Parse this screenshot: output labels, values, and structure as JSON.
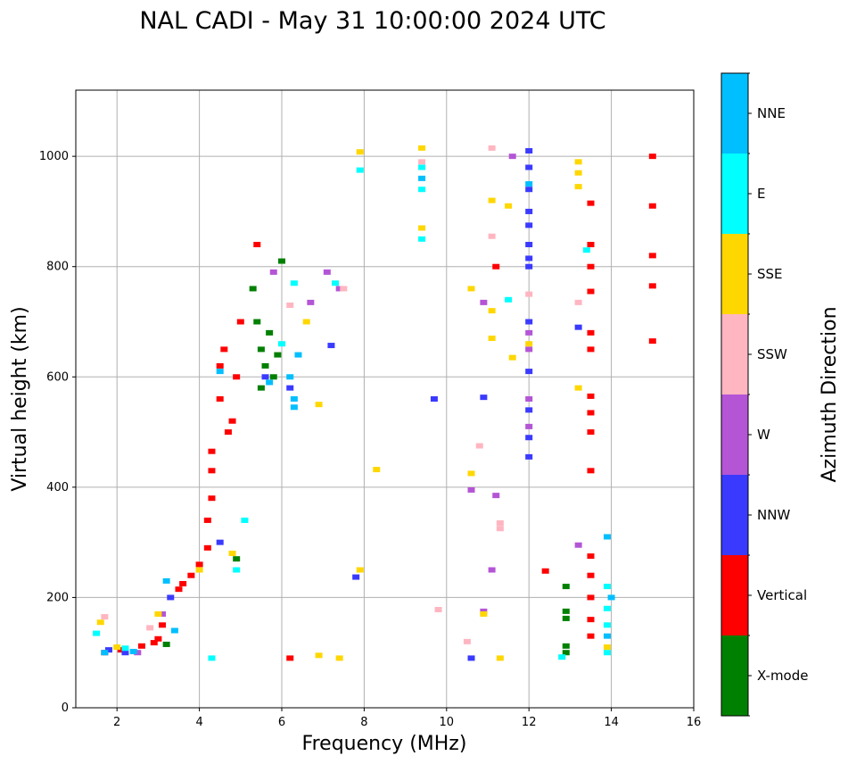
{
  "chart_data": {
    "type": "scatter",
    "title": "NAL CADI - May 31 10:00:00 2024 UTC",
    "xlabel": "Frequency (MHz)",
    "ylabel": "Virtual height (km)",
    "xlim": [
      1,
      16
    ],
    "ylim": [
      0,
      1120
    ],
    "xticks": [
      2,
      4,
      6,
      8,
      10,
      12,
      14,
      16
    ],
    "yticks": [
      0,
      200,
      400,
      600,
      800,
      1000
    ],
    "grid": true,
    "colorbar": {
      "title": "Azimuth Direction",
      "categories": [
        {
          "label": "X-mode",
          "color": "#008000"
        },
        {
          "label": "Vertical",
          "color": "#ff0000"
        },
        {
          "label": "NNW",
          "color": "#3a3aff"
        },
        {
          "label": "W",
          "color": "#b455d6"
        },
        {
          "label": "SSW",
          "color": "#ffb6c1"
        },
        {
          "label": "SSE",
          "color": "#ffd700"
        },
        {
          "label": "E",
          "color": "#00ffff"
        },
        {
          "label": "NNE",
          "color": "#00bfff"
        }
      ]
    },
    "series": [
      {
        "name": "X-mode",
        "points": [
          [
            3.2,
            115
          ],
          [
            4.9,
            270
          ],
          [
            5.4,
            700
          ],
          [
            5.5,
            650
          ],
          [
            5.6,
            620
          ],
          [
            5.7,
            680
          ],
          [
            5.8,
            600
          ],
          [
            5.9,
            640
          ],
          [
            6.0,
            810
          ],
          [
            5.5,
            580
          ],
          [
            5.3,
            760
          ],
          [
            12.9,
            220
          ],
          [
            12.9,
            175
          ],
          [
            12.9,
            162
          ],
          [
            12.9,
            112
          ],
          [
            12.9,
            100
          ]
        ]
      },
      {
        "name": "Vertical",
        "points": [
          [
            1.7,
            100
          ],
          [
            2.1,
            105
          ],
          [
            2.6,
            112
          ],
          [
            2.9,
            118
          ],
          [
            3.0,
            125
          ],
          [
            3.1,
            150
          ],
          [
            3.5,
            215
          ],
          [
            3.6,
            225
          ],
          [
            3.8,
            240
          ],
          [
            4.0,
            260
          ],
          [
            4.2,
            290
          ],
          [
            4.2,
            340
          ],
          [
            4.3,
            380
          ],
          [
            4.3,
            430
          ],
          [
            4.3,
            465
          ],
          [
            4.5,
            560
          ],
          [
            4.5,
            620
          ],
          [
            4.6,
            650
          ],
          [
            4.7,
            500
          ],
          [
            4.8,
            520
          ],
          [
            4.9,
            600
          ],
          [
            5.0,
            700
          ],
          [
            5.4,
            840
          ],
          [
            6.2,
            90
          ],
          [
            11.2,
            800
          ],
          [
            12.4,
            248
          ],
          [
            13.5,
            915
          ],
          [
            13.5,
            840
          ],
          [
            13.5,
            800
          ],
          [
            13.5,
            755
          ],
          [
            13.5,
            680
          ],
          [
            13.5,
            650
          ],
          [
            13.5,
            565
          ],
          [
            13.5,
            535
          ],
          [
            13.5,
            500
          ],
          [
            13.5,
            430
          ],
          [
            13.5,
            275
          ],
          [
            13.5,
            240
          ],
          [
            13.5,
            200
          ],
          [
            13.5,
            160
          ],
          [
            13.5,
            130
          ],
          [
            15.0,
            1000
          ],
          [
            15.0,
            910
          ],
          [
            15.0,
            820
          ],
          [
            15.0,
            765
          ],
          [
            15.0,
            665
          ]
        ]
      },
      {
        "name": "NNW",
        "points": [
          [
            1.8,
            105
          ],
          [
            2.2,
            100
          ],
          [
            3.3,
            200
          ],
          [
            4.5,
            300
          ],
          [
            5.6,
            600
          ],
          [
            6.2,
            580
          ],
          [
            7.2,
            657
          ],
          [
            7.8,
            237
          ],
          [
            9.7,
            560
          ],
          [
            10.6,
            90
          ],
          [
            10.9,
            563
          ],
          [
            12.0,
            1010
          ],
          [
            12.0,
            980
          ],
          [
            12.0,
            940
          ],
          [
            12.0,
            900
          ],
          [
            12.0,
            875
          ],
          [
            12.0,
            840
          ],
          [
            12.0,
            815
          ],
          [
            12.0,
            800
          ],
          [
            12.0,
            700
          ],
          [
            12.0,
            610
          ],
          [
            12.0,
            540
          ],
          [
            12.0,
            490
          ],
          [
            12.0,
            455
          ],
          [
            13.2,
            690
          ]
        ]
      },
      {
        "name": "W",
        "points": [
          [
            2.5,
            100
          ],
          [
            3.1,
            170
          ],
          [
            5.8,
            790
          ],
          [
            6.7,
            735
          ],
          [
            7.1,
            790
          ],
          [
            7.4,
            760
          ],
          [
            10.6,
            395
          ],
          [
            10.9,
            175
          ],
          [
            10.9,
            735
          ],
          [
            11.2,
            385
          ],
          [
            11.6,
            1000
          ],
          [
            11.1,
            250
          ],
          [
            12.0,
            680
          ],
          [
            12.0,
            650
          ],
          [
            12.0,
            560
          ],
          [
            12.0,
            510
          ],
          [
            13.2,
            295
          ]
        ]
      },
      {
        "name": "SSW",
        "points": [
          [
            1.7,
            165
          ],
          [
            2.8,
            145
          ],
          [
            6.2,
            730
          ],
          [
            7.5,
            760
          ],
          [
            9.4,
            990
          ],
          [
            9.8,
            178
          ],
          [
            10.5,
            120
          ],
          [
            10.8,
            475
          ],
          [
            11.1,
            1015
          ],
          [
            11.1,
            855
          ],
          [
            11.3,
            335
          ],
          [
            11.3,
            325
          ],
          [
            12.0,
            750
          ],
          [
            13.2,
            735
          ]
        ]
      },
      {
        "name": "SSE",
        "points": [
          [
            1.6,
            155
          ],
          [
            2.0,
            110
          ],
          [
            3.0,
            170
          ],
          [
            4.0,
            250
          ],
          [
            4.8,
            280
          ],
          [
            6.6,
            700
          ],
          [
            6.9,
            95
          ],
          [
            6.9,
            550
          ],
          [
            7.4,
            90
          ],
          [
            7.9,
            1008
          ],
          [
            7.9,
            250
          ],
          [
            8.3,
            432
          ],
          [
            9.4,
            1015
          ],
          [
            9.4,
            870
          ],
          [
            10.6,
            425
          ],
          [
            10.6,
            760
          ],
          [
            10.9,
            170
          ],
          [
            11.1,
            920
          ],
          [
            11.1,
            720
          ],
          [
            11.1,
            670
          ],
          [
            11.3,
            90
          ],
          [
            11.5,
            910
          ],
          [
            11.6,
            635
          ],
          [
            12.0,
            660
          ],
          [
            13.2,
            990
          ],
          [
            13.2,
            970
          ],
          [
            13.2,
            945
          ],
          [
            13.2,
            580
          ],
          [
            13.9,
            110
          ]
        ]
      },
      {
        "name": "E",
        "points": [
          [
            1.5,
            135
          ],
          [
            2.2,
            108
          ],
          [
            4.3,
            90
          ],
          [
            4.9,
            250
          ],
          [
            5.1,
            340
          ],
          [
            6.0,
            660
          ],
          [
            6.3,
            770
          ],
          [
            7.3,
            770
          ],
          [
            7.9,
            975
          ],
          [
            9.4,
            980
          ],
          [
            9.4,
            940
          ],
          [
            9.4,
            850
          ],
          [
            11.5,
            740
          ],
          [
            12.8,
            92
          ],
          [
            13.4,
            830
          ],
          [
            13.9,
            220
          ],
          [
            13.9,
            180
          ],
          [
            13.9,
            150
          ],
          [
            13.9,
            100
          ]
        ]
      },
      {
        "name": "NNE",
        "points": [
          [
            1.7,
            100
          ],
          [
            2.4,
            102
          ],
          [
            3.2,
            230
          ],
          [
            3.4,
            140
          ],
          [
            4.5,
            610
          ],
          [
            5.7,
            590
          ],
          [
            6.2,
            600
          ],
          [
            6.3,
            560
          ],
          [
            6.3,
            545
          ],
          [
            6.4,
            640
          ],
          [
            9.4,
            960
          ],
          [
            12.0,
            950
          ],
          [
            13.9,
            310
          ],
          [
            14.0,
            200
          ],
          [
            13.9,
            130
          ]
        ]
      }
    ]
  }
}
